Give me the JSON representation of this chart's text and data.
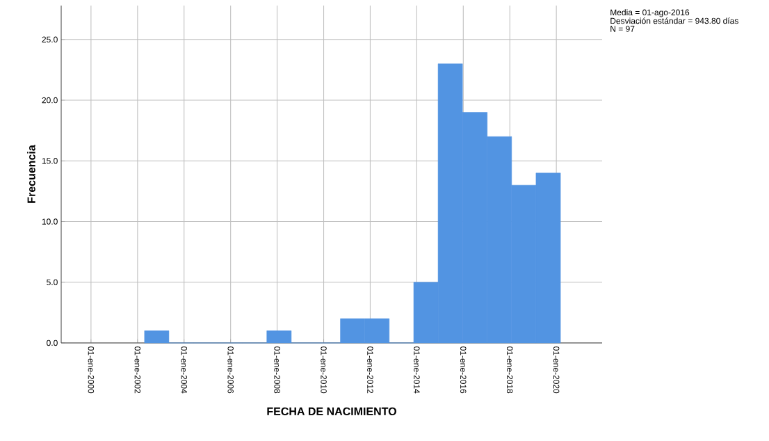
{
  "chart_data": {
    "type": "histogram",
    "xlabel": "FECHA DE NACIMIENTO",
    "ylabel": "Frecuencia",
    "bins": [
      "2002-04-20",
      "2003-05-08",
      "2004-05-29",
      "2005-06-17",
      "2006-07-05",
      "2007-07-23",
      "2008-08-10",
      "2009-08-29",
      "2010-09-20",
      "2011-10-08",
      "2012-10-26",
      "2013-11-14",
      "2014-12-02",
      "2015-12-20",
      "2017-01-11",
      "2018-01-29",
      "2019-02-16",
      "2020-03-06"
    ],
    "values": [
      1,
      0,
      0,
      0,
      0,
      1,
      0,
      0,
      2,
      2,
      0,
      5,
      23,
      19,
      17,
      13,
      14
    ],
    "color": "#5294e2",
    "xlim": [
      "1998-09-20",
      "2021-12-20"
    ],
    "ylim": [
      0,
      27.8
    ],
    "xticks": [
      {
        "value": "2000-01-01",
        "label": "01-ene-2000"
      },
      {
        "value": "2002-01-01",
        "label": "01-ene-2002"
      },
      {
        "value": "2004-01-01",
        "label": "01-ene-2004"
      },
      {
        "value": "2006-01-01",
        "label": "01-ene-2006"
      },
      {
        "value": "2008-01-01",
        "label": "01-ene-2008"
      },
      {
        "value": "2010-01-01",
        "label": "01-ene-2010"
      },
      {
        "value": "2012-01-01",
        "label": "01-ene-2012"
      },
      {
        "value": "2014-01-01",
        "label": "01-ene-2014"
      },
      {
        "value": "2016-01-01",
        "label": "01-ene-2016"
      },
      {
        "value": "2018-01-01",
        "label": "01-ene-2018"
      },
      {
        "value": "2020-01-01",
        "label": "01-ene-2020"
      }
    ],
    "yticks": [
      {
        "value": 0,
        "label": "0.0"
      },
      {
        "value": 5,
        "label": "5.0"
      },
      {
        "value": 10,
        "label": "10.0"
      },
      {
        "value": 15,
        "label": "15.0"
      },
      {
        "value": 20,
        "label": "20.0"
      },
      {
        "value": 25,
        "label": "25.0"
      }
    ],
    "grid": true,
    "annotations": [
      "Media = 01-ago-2016",
      "Desviación estándar = 943.80 días",
      "N = 97"
    ]
  }
}
